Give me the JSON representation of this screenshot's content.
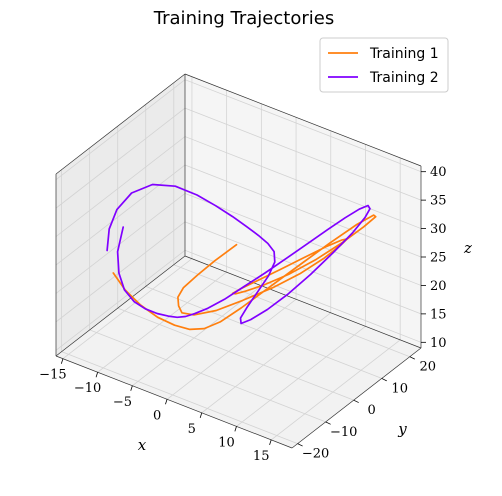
{
  "chart_data": {
    "type": "line",
    "projection": "3d",
    "title": "Training Trajectories",
    "xlabel": "x",
    "ylabel": "y",
    "zlabel": "z",
    "xlim": [
      -16,
      18
    ],
    "ylim": [
      -22,
      24
    ],
    "zlim": [
      9,
      41
    ],
    "xticks": [
      -15,
      -10,
      -5,
      0,
      5,
      10,
      15
    ],
    "yticks": [
      -20,
      -10,
      0,
      10,
      20
    ],
    "zticks": [
      10,
      15,
      20,
      25,
      30,
      35,
      40
    ],
    "grid": true,
    "legend": {
      "position": "top-right"
    },
    "series": [
      {
        "name": "Training 1",
        "color": "#ff7f0e",
        "x": [
          -0.5,
          -2.0,
          -3.3,
          -4.5,
          -4.9,
          -4.6,
          -4.0,
          -2.8,
          -1.0,
          1.0,
          3.5,
          6.0,
          8.5,
          10.6,
          12.2,
          12.9,
          12.4,
          11.0,
          9.0,
          6.8,
          4.8,
          3.4,
          2.8,
          3.0,
          4.2,
          6.2,
          8.6,
          11.0,
          13.0,
          14.3,
          14.6,
          13.8,
          12.1,
          9.8,
          7.2,
          4.6,
          2.2,
          0.1,
          -1.9,
          -4.0,
          -6.4,
          -9.0,
          -11.5,
          -13.6
        ],
        "y": [
          4.0,
          0.0,
          -3.0,
          -5.0,
          -6.0,
          -6.5,
          -6.8,
          -5.5,
          -2.0,
          2.5,
          7.0,
          10.5,
          13.0,
          13.5,
          12.0,
          8.5,
          4.0,
          -0.5,
          -4.0,
          -6.5,
          -7.5,
          -7.0,
          -4.5,
          -1.5,
          2.0,
          6.0,
          10.0,
          13.5,
          16.0,
          17.0,
          15.5,
          11.5,
          6.0,
          0.5,
          -4.0,
          -7.0,
          -8.5,
          -9.0,
          -9.2,
          -9.4,
          -9.5,
          -9.2,
          -8.5,
          -7.5
        ],
        "z": [
          26.0,
          24.0,
          22.0,
          20.0,
          18.5,
          17.3,
          16.5,
          16.2,
          16.5,
          17.5,
          19.2,
          21.5,
          24.5,
          27.5,
          30.0,
          31.5,
          31.8,
          30.9,
          29.2,
          27.2,
          25.2,
          23.5,
          22.2,
          21.6,
          21.9,
          23.2,
          25.5,
          28.3,
          31.0,
          33.0,
          34.0,
          33.5,
          31.5,
          28.5,
          25.0,
          21.5,
          18.5,
          16.5,
          15.5,
          15.3,
          15.6,
          16.4,
          17.6,
          19.2
        ]
      },
      {
        "name": "Training 2",
        "color": "#8000ff",
        "x": [
          -14.6,
          -14.2,
          -13.2,
          -12.0,
          -10.6,
          -9.2,
          -7.7,
          -6.1,
          -4.6,
          -3.2,
          -1.9,
          -0.6,
          0.6,
          1.8,
          3.2,
          4.7,
          6.4,
          8.2,
          10.1,
          12.0,
          13.8,
          15.3,
          16.2,
          16.4,
          15.6,
          14.0,
          11.8,
          9.2,
          6.6,
          4.4,
          2.9,
          2.3,
          2.4,
          2.9,
          3.2,
          2.9,
          2.0,
          0.8,
          -0.8,
          -2.6,
          -4.8,
          -7.2,
          -9.8,
          -12.2,
          -14.0,
          -14.9,
          -15.0,
          -14.3
        ],
        "y": [
          -1.5,
          -4.5,
          -6.5,
          -7.5,
          -7.5,
          -7.0,
          -6.5,
          -6.5,
          -7.0,
          -7.5,
          -7.5,
          -6.0,
          -3.0,
          1.0,
          5.0,
          9.0,
          12.5,
          15.0,
          16.5,
          16.8,
          15.5,
          12.5,
          8.5,
          3.5,
          -1.5,
          -5.5,
          -8.0,
          -9.0,
          -8.5,
          -6.5,
          -3.0,
          1.0,
          4.5,
          7.0,
          8.5,
          9.0,
          9.0,
          8.6,
          8.2,
          7.8,
          7.2,
          6.5,
          5.2,
          3.0,
          0.0,
          -3.0,
          -5.5,
          -8.0
        ],
        "z": [
          24.5,
          21.5,
          19.0,
          17.0,
          15.6,
          14.8,
          14.5,
          14.8,
          15.5,
          16.5,
          17.6,
          18.6,
          19.6,
          20.9,
          22.4,
          24.2,
          26.3,
          28.6,
          31.0,
          33.3,
          35.3,
          36.6,
          37.0,
          36.3,
          34.3,
          31.3,
          27.8,
          24.2,
          21.0,
          18.5,
          17.4,
          17.6,
          19.0,
          21.0,
          23.0,
          24.5,
          25.5,
          26.5,
          27.5,
          28.5,
          29.6,
          30.6,
          31.4,
          31.4,
          30.2,
          28.0,
          25.5,
          23.0
        ]
      }
    ]
  }
}
